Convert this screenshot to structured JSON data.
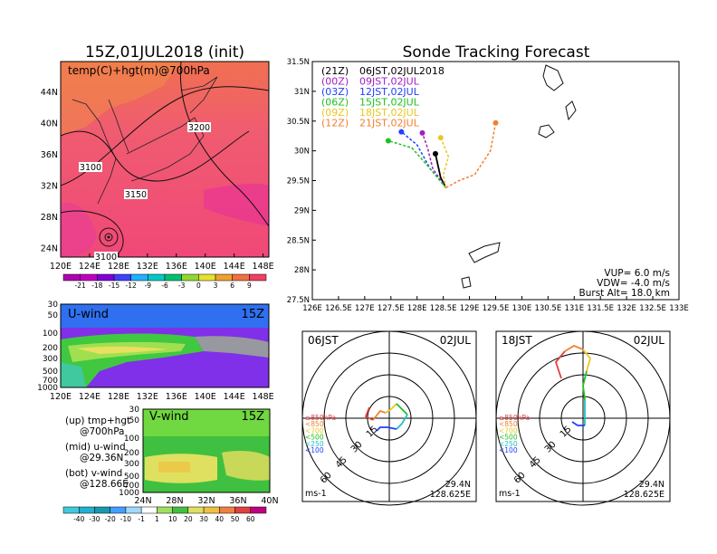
{
  "titles": {
    "left": "15Z,01JUL2018 (init)",
    "right": "Sonde Tracking Forecast"
  },
  "map700": {
    "label": "temp(C)+hgt(m)@700hPa",
    "lon_ticks": [
      "120E",
      "124E",
      "128E",
      "132E",
      "136E",
      "140E",
      "144E",
      "148E"
    ],
    "lat_ticks": [
      "44N",
      "40N",
      "36N",
      "32N",
      "28N",
      "24N"
    ],
    "contour_labels": [
      "3200",
      "3100",
      "3150",
      "3100"
    ],
    "colorbar": [
      "-21",
      "-18",
      "-15",
      "-12",
      "-9",
      "-6",
      "-3",
      "0",
      "3",
      "6",
      "9"
    ],
    "colorbar_colors": [
      "#b000b0",
      "#c000c0",
      "#8000d8",
      "#4040ff",
      "#20b0ff",
      "#00c8c8",
      "#00c070",
      "#90d830",
      "#e8e030",
      "#f0a030",
      "#f07040",
      "#f04060"
    ]
  },
  "uwind": {
    "label": "U-wind",
    "time": "15Z",
    "p_ticks": [
      "30",
      "50",
      "100",
      "200",
      "300",
      "500",
      "700",
      "1000"
    ],
    "lon_ticks": [
      "120E",
      "124E",
      "128E",
      "132E",
      "136E",
      "140E",
      "144E",
      "148E"
    ]
  },
  "vwind": {
    "label": "V-wind",
    "time": "15Z",
    "p_ticks": [
      "30",
      "50",
      "100",
      "200",
      "300",
      "500",
      "700",
      "1000"
    ],
    "lat_ticks": [
      "24N",
      "28N",
      "32N",
      "36N",
      "40N"
    ],
    "colorbar": [
      "-40",
      "-30",
      "-20",
      "-10",
      "-1",
      "1",
      "10",
      "20",
      "30",
      "40",
      "50",
      "60"
    ],
    "colorbar_colors": [
      "#40c8e0",
      "#20b0d0",
      "#1898b0",
      "#40a0ff",
      "#a0d8ff",
      "#ffffff",
      "#a0e060",
      "#40c040",
      "#e0e060",
      "#f0c040",
      "#f08040",
      "#e04040",
      "#c00080"
    ]
  },
  "legend_notes": [
    {
      "line1": "(up) tmp+hgt",
      "line2": "@700hPa"
    },
    {
      "line1": "(mid) u-wind",
      "line2": "@29.36N"
    },
    {
      "line1": "(bot) v-wind",
      "line2": "@128.66E"
    }
  ],
  "track": {
    "lon_ticks": [
      "126E",
      "126.5E",
      "127E",
      "127.5E",
      "128E",
      "128.5E",
      "129E",
      "129.5E",
      "130E",
      "130.5E",
      "131E",
      "131.5E",
      "132E",
      "132.5E",
      "133E"
    ],
    "lat_ticks": [
      "31.5N",
      "31N",
      "30.5N",
      "30N",
      "29.5N",
      "29N",
      "28.5N",
      "28N",
      "27.5N"
    ],
    "legend": [
      {
        "code": "(21Z)",
        "time": "06JST,02JUL2018",
        "color": "#000000"
      },
      {
        "code": "(00Z)",
        "time": "09JST,02JUL",
        "color": "#a020c0"
      },
      {
        "code": "(03Z)",
        "time": "12JST,02JUL",
        "color": "#2040ff"
      },
      {
        "code": "(06Z)",
        "time": "15JST,02JUL",
        "color": "#20c020"
      },
      {
        "code": "(09Z)",
        "time": "18JST,02JUL",
        "color": "#e8c820"
      },
      {
        "code": "(12Z)",
        "time": "21JST,02JUL",
        "color": "#f08030"
      }
    ],
    "params": [
      "VUP= 6.0 m/s",
      "VDW= -4.0 m/s",
      "Burst Alt= 18.0 km"
    ]
  },
  "hodo_left": {
    "time": "06JST",
    "date": "02JUL",
    "ring_labels": [
      "15",
      "30",
      "45",
      "60"
    ],
    "pressure_legend": [
      {
        "text": "≥850hPa",
        "color": "#e04040"
      },
      {
        "text": "<850",
        "color": "#f08030"
      },
      {
        "text": "<700",
        "color": "#e8c820"
      },
      {
        "text": "<500",
        "color": "#20c020"
      },
      {
        "text": "<250",
        "color": "#20c0c0"
      },
      {
        "text": "<100",
        "color": "#2040ff"
      }
    ],
    "units": "ms-1",
    "lat": "29.4N",
    "lon": "128.625E"
  },
  "hodo_right": {
    "time": "18JST",
    "date": "02JUL",
    "ring_labels": [
      "15",
      "30",
      "45",
      "60"
    ],
    "pressure_legend": [
      {
        "text": "≥850hPa",
        "color": "#e04040"
      },
      {
        "text": "<850",
        "color": "#f08030"
      },
      {
        "text": "<700",
        "color": "#e8c820"
      },
      {
        "text": "<500",
        "color": "#20c020"
      },
      {
        "text": "<250",
        "color": "#20c0c0"
      },
      {
        "text": "<100",
        "color": "#2040ff"
      }
    ],
    "units": "ms-1",
    "lat": "29.4N",
    "lon": "128.625E"
  },
  "chart_data": [
    {
      "type": "line",
      "title": "Sonde Tracking Forecast",
      "xlabel": "",
      "ylabel": "",
      "xlim": [
        126,
        133
      ],
      "ylim": [
        27.5,
        31.5
      ],
      "grid": false,
      "legend_position": "top-left",
      "series": [
        {
          "name": "(21Z) 06JST,02JUL2018",
          "x": [
            128.55,
            128.45,
            128.4,
            128.35
          ],
          "y": [
            29.38,
            29.55,
            29.75,
            29.95
          ]
        },
        {
          "name": "(00Z) 09JST,02JUL",
          "x": [
            128.55,
            128.3,
            128.2,
            128.1
          ],
          "y": [
            29.38,
            29.7,
            30.05,
            30.3
          ]
        },
        {
          "name": "(03Z) 12JST,02JUL",
          "x": [
            128.55,
            128.25,
            128.0,
            127.7
          ],
          "y": [
            29.38,
            29.7,
            30.1,
            30.32
          ]
        },
        {
          "name": "(06Z) 15JST,02JUL",
          "x": [
            128.55,
            128.2,
            127.9,
            127.45
          ],
          "y": [
            29.38,
            29.75,
            30.05,
            30.17
          ]
        },
        {
          "name": "(09Z) 18JST,02JUL",
          "x": [
            128.55,
            128.5,
            128.6,
            128.45
          ],
          "y": [
            29.38,
            29.6,
            29.9,
            30.22
          ]
        },
        {
          "name": "(12Z) 21JST,02JUL",
          "x": [
            128.55,
            128.8,
            129.1,
            129.4,
            129.5
          ],
          "y": [
            29.38,
            29.5,
            29.6,
            30.0,
            30.47
          ]
        }
      ]
    }
  ]
}
